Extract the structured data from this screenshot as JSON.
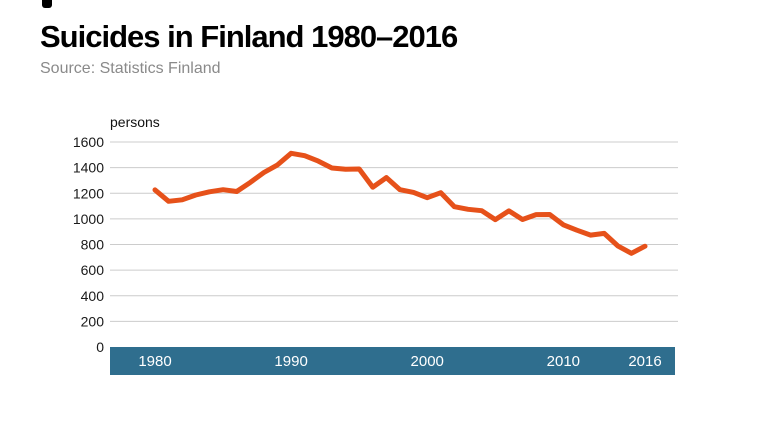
{
  "header": {
    "title": "Suicides in Finland 1980–2016",
    "source": "Source: Statistics Finland"
  },
  "chart_data": {
    "type": "line",
    "title": "Suicides in Finland 1980–2016",
    "subtitle": "Source: Statistics Finland",
    "ylabel": "persons",
    "x": [
      1980,
      1981,
      1982,
      1983,
      1984,
      1985,
      1986,
      1987,
      1988,
      1989,
      1990,
      1991,
      1992,
      1993,
      1994,
      1995,
      1996,
      1997,
      1998,
      1999,
      2000,
      2001,
      2002,
      2003,
      2004,
      2005,
      2006,
      2007,
      2008,
      2009,
      2010,
      2011,
      2012,
      2013,
      2014,
      2015,
      2016
    ],
    "series": [
      {
        "name": "Suicides in Finland",
        "values": [
          1226,
          1137,
          1149,
          1186,
          1211,
          1228,
          1214,
          1285,
          1362,
          1421,
          1512,
          1493,
          1451,
          1397,
          1387,
          1389,
          1247,
          1322,
          1228,
          1207,
          1165,
          1204,
          1095,
          1075,
          1064,
          994,
          1062,
          995,
          1033,
          1034,
          954,
          912,
          873,
          887,
          789,
          731,
          787
        ]
      }
    ],
    "ylim": [
      0,
      1600
    ],
    "yticks": [
      0,
      200,
      400,
      600,
      800,
      1000,
      1200,
      1400,
      1600
    ],
    "xticks": [
      1980,
      1990,
      2000,
      2010,
      2016
    ],
    "grid": true,
    "legend": "none",
    "colors": {
      "line": "#e6511a",
      "axis_band": "#2f6e8e",
      "gridline": "#cccccc",
      "ytick_text": "#1a1a1a",
      "xtick_text": "#ffffff"
    }
  }
}
